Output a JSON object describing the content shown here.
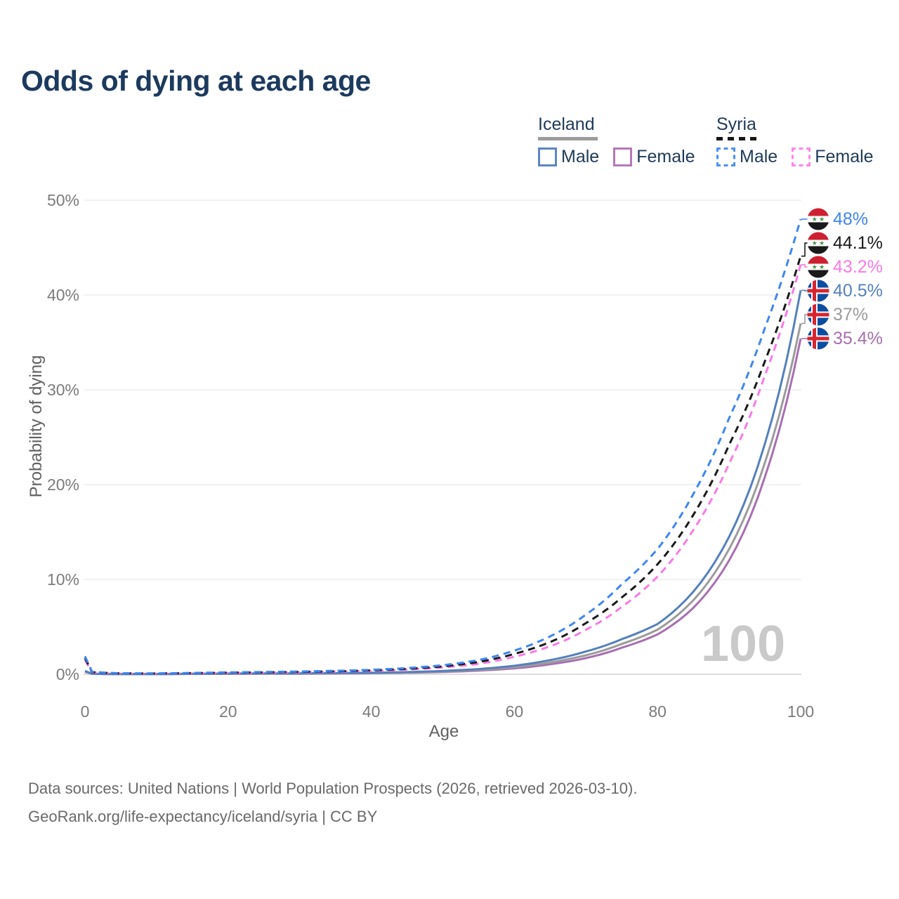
{
  "title": "Odds of dying at each age",
  "legend": {
    "groups": [
      {
        "key": "iceland",
        "name": "Iceland",
        "line_style": "solid",
        "line_color": "#9b9b9b",
        "items": [
          {
            "key": "male",
            "label": "Male",
            "box_color": "#5b87c5",
            "box_style": "solid"
          },
          {
            "key": "female",
            "label": "Female",
            "box_color": "#b678b8",
            "box_style": "solid"
          }
        ]
      },
      {
        "key": "syria",
        "name": "Syria",
        "line_style": "dashed",
        "line_color": "#161616",
        "items": [
          {
            "key": "male",
            "label": "Male",
            "box_color": "#4a90f7",
            "box_style": "dashed"
          },
          {
            "key": "female",
            "label": "Female",
            "box_color": "#ff86e8",
            "box_style": "dashed"
          }
        ]
      }
    ]
  },
  "chart_data": {
    "type": "line",
    "title": "Odds of dying at each age",
    "xlabel": "Age",
    "ylabel": "Probability of dying",
    "x_range": [
      0,
      100
    ],
    "y_range_percent": [
      0,
      50
    ],
    "grid": true,
    "legend_position": "top-right",
    "watermark": "100",
    "x_ticks": {
      "values": [
        0,
        20,
        40,
        60,
        80,
        100
      ],
      "labels": [
        "0",
        "20",
        "40",
        "60",
        "80",
        "100"
      ]
    },
    "y_ticks": {
      "values": [
        0,
        10,
        20,
        30,
        40,
        50
      ],
      "labels": [
        "0%",
        "10%",
        "20%",
        "30%",
        "40%",
        "50%"
      ]
    },
    "ages": [
      0,
      1,
      5,
      10,
      15,
      20,
      25,
      30,
      35,
      40,
      45,
      50,
      55,
      60,
      65,
      70,
      75,
      80,
      85,
      90,
      95,
      100
    ],
    "series": [
      {
        "name": "Syria Male",
        "country": "Syria",
        "sex": "Male",
        "color": "#3e86f2",
        "dash": true,
        "flag": "syria-flag",
        "end_label": "48%",
        "end_value": 48.0,
        "label_color": "#3e86f2",
        "values": [
          1.9,
          0.25,
          0.1,
          0.09,
          0.14,
          0.2,
          0.24,
          0.29,
          0.36,
          0.47,
          0.65,
          0.95,
          1.5,
          2.5,
          4.0,
          6.3,
          9.5,
          13.2,
          19.0,
          27.0,
          36.5,
          48.0
        ]
      },
      {
        "name": "Syria",
        "country": "Syria",
        "sex": "Both",
        "color": "#191919",
        "dash": true,
        "flag": "syria-flag",
        "end_label": "44.1%",
        "end_value": 44.1,
        "label_color": "#191919",
        "values": [
          1.7,
          0.22,
          0.09,
          0.08,
          0.12,
          0.17,
          0.2,
          0.25,
          0.31,
          0.41,
          0.57,
          0.83,
          1.3,
          2.15,
          3.4,
          5.4,
          8.1,
          11.6,
          16.8,
          24.2,
          33.0,
          44.1
        ]
      },
      {
        "name": "Syria Female",
        "country": "Syria",
        "sex": "Female",
        "color": "#fb79e6",
        "dash": true,
        "flag": "syria-flag",
        "end_label": "43.2%",
        "end_value": 43.2,
        "label_color": "#fb79e6",
        "values": [
          1.5,
          0.19,
          0.08,
          0.07,
          0.1,
          0.13,
          0.16,
          0.21,
          0.27,
          0.35,
          0.49,
          0.72,
          1.1,
          1.85,
          2.95,
          4.7,
          7.1,
          10.3,
          15.2,
          22.2,
          31.5,
          43.2
        ]
      },
      {
        "name": "Iceland Male",
        "country": "Iceland",
        "sex": "Male",
        "color": "#5480bd",
        "dash": false,
        "flag": "iceland-flag",
        "end_label": "40.5%",
        "end_value": 40.5,
        "label_color": "#5480bd",
        "values": [
          0.35,
          0.05,
          0.02,
          0.02,
          0.05,
          0.08,
          0.09,
          0.1,
          0.12,
          0.16,
          0.23,
          0.35,
          0.55,
          0.9,
          1.5,
          2.4,
          3.7,
          5.3,
          8.7,
          14.5,
          24.3,
          40.5
        ]
      },
      {
        "name": "Iceland",
        "country": "Iceland",
        "sex": "Both",
        "color": "#9b9b9b",
        "dash": false,
        "flag": "iceland-flag",
        "end_label": "37%",
        "end_value": 37.0,
        "label_color": "#9b9b9b",
        "values": [
          0.3,
          0.04,
          0.02,
          0.02,
          0.04,
          0.06,
          0.07,
          0.08,
          0.1,
          0.13,
          0.19,
          0.29,
          0.46,
          0.75,
          1.25,
          2.0,
          3.2,
          4.7,
          7.8,
          13.2,
          22.3,
          37.0
        ]
      },
      {
        "name": "Iceland Female",
        "country": "Iceland",
        "sex": "Female",
        "color": "#a76fb0",
        "dash": false,
        "flag": "iceland-flag",
        "end_label": "35.4%",
        "end_value": 35.4,
        "label_color": "#a76fb0",
        "values": [
          0.25,
          0.04,
          0.015,
          0.015,
          0.03,
          0.04,
          0.05,
          0.06,
          0.08,
          0.11,
          0.16,
          0.24,
          0.38,
          0.62,
          1.05,
          1.7,
          2.8,
          4.2,
          7.0,
          12.0,
          20.8,
          35.4
        ]
      }
    ],
    "flag_colors": {
      "syria": {
        "red": "#ce2030",
        "white": "#ffffff",
        "black": "#1a1a1a",
        "star_green": "#3f9343"
      },
      "iceland": {
        "blue": "#0d4da1",
        "white": "#ffffff",
        "red": "#d7242e"
      }
    }
  },
  "footer": {
    "line1": "Data sources: United Nations | World Population Prospects (2026, retrieved 2026-03-10).",
    "line2": "GeoRank.org/life-expectancy/iceland/syria | CC BY"
  }
}
